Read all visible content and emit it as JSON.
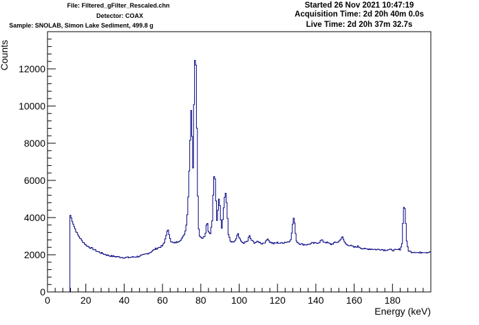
{
  "header": {
    "file": "File: Filtered_gFilter_Rescaled.chn",
    "detector": "Detector: COAX",
    "sample": "Sample: SNOLAB, Simon Lake Sediment, 499.8 g",
    "started": "Started 26 Nov 2021 10:47:19",
    "acquisition_time": "Acquisition Time: 2d 20h 40m 0.0s",
    "live_time": "Live Time: 2d 20h 37m 32.7s"
  },
  "colors": {
    "line": "#000080",
    "axis": "#000000",
    "background": "#ffffff"
  },
  "chart_data": {
    "type": "line",
    "style": "step histogram",
    "xlabel": "Energy (keV)",
    "ylabel": "Counts",
    "xlim": [
      0,
      200
    ],
    "ylim": [
      0,
      14000
    ],
    "x_ticks": [
      0,
      20,
      40,
      60,
      80,
      100,
      120,
      140,
      160,
      180
    ],
    "y_ticks": [
      0,
      2000,
      4000,
      6000,
      8000,
      10000,
      12000
    ],
    "grid": false,
    "legend": "none",
    "points": [
      [
        11.7,
        0
      ],
      [
        11.8,
        4050
      ],
      [
        12,
        4150
      ],
      [
        12.5,
        3950
      ],
      [
        13,
        3800
      ],
      [
        14,
        3500
      ],
      [
        15,
        3250
      ],
      [
        16,
        3050
      ],
      [
        17,
        2900
      ],
      [
        18,
        2750
      ],
      [
        19,
        2650
      ],
      [
        20,
        2520
      ],
      [
        22,
        2400
      ],
      [
        24,
        2300
      ],
      [
        26,
        2180
      ],
      [
        28,
        2100
      ],
      [
        30,
        2020
      ],
      [
        32,
        1960
      ],
      [
        34,
        1920
      ],
      [
        36,
        1900
      ],
      [
        38,
        1870
      ],
      [
        40,
        1850
      ],
      [
        42,
        1850
      ],
      [
        44,
        1870
      ],
      [
        46,
        1890
      ],
      [
        48,
        1920
      ],
      [
        50,
        1980
      ],
      [
        52,
        2060
      ],
      [
        53,
        2100
      ],
      [
        54,
        2150
      ],
      [
        56,
        2300
      ],
      [
        58,
        2380
      ],
      [
        60,
        2480
      ],
      [
        61,
        2650
      ],
      [
        62,
        3100
      ],
      [
        62.8,
        3350
      ],
      [
        63.6,
        3050
      ],
      [
        64.5,
        2700
      ],
      [
        66,
        2620
      ],
      [
        68,
        2700
      ],
      [
        70,
        2850
      ],
      [
        71,
        3000
      ],
      [
        72,
        3300
      ],
      [
        72.8,
        3900
      ],
      [
        73.5,
        5200
      ],
      [
        74.3,
        7600
      ],
      [
        74.9,
        9900
      ],
      [
        75.4,
        8800
      ],
      [
        75.8,
        5500
      ],
      [
        76.3,
        9300
      ],
      [
        76.8,
        12000
      ],
      [
        77.2,
        13300
      ],
      [
        77.7,
        11200
      ],
      [
        78.2,
        6400
      ],
      [
        78.8,
        3500
      ],
      [
        79.5,
        3000
      ],
      [
        80.5,
        2900
      ],
      [
        81.5,
        2950
      ],
      [
        82.3,
        3000
      ],
      [
        83.2,
        3850
      ],
      [
        84,
        3200
      ],
      [
        85,
        3150
      ],
      [
        86,
        3900
      ],
      [
        86.6,
        5600
      ],
      [
        87.2,
        6700
      ],
      [
        87.8,
        5300
      ],
      [
        88.4,
        3800
      ],
      [
        89,
        4500
      ],
      [
        89.6,
        5150
      ],
      [
        90.2,
        4300
      ],
      [
        90.8,
        3300
      ],
      [
        91.5,
        3900
      ],
      [
        92.3,
        5000
      ],
      [
        92.9,
        5400
      ],
      [
        93.6,
        4600
      ],
      [
        94.4,
        3100
      ],
      [
        95.5,
        2700
      ],
      [
        97,
        2650
      ],
      [
        98.5,
        2850
      ],
      [
        99.3,
        3150
      ],
      [
        100.2,
        2850
      ],
      [
        101.5,
        2650
      ],
      [
        103,
        2650
      ],
      [
        104.5,
        2750
      ],
      [
        105.3,
        3050
      ],
      [
        106.2,
        2800
      ],
      [
        108,
        2650
      ],
      [
        110,
        2700
      ],
      [
        112,
        2600
      ],
      [
        114,
        2700
      ],
      [
        114.9,
        2900
      ],
      [
        115.8,
        2700
      ],
      [
        118,
        2600
      ],
      [
        120,
        2650
      ],
      [
        122,
        2620
      ],
      [
        124,
        2680
      ],
      [
        126,
        2700
      ],
      [
        127.2,
        2900
      ],
      [
        128,
        3700
      ],
      [
        128.6,
        4050
      ],
      [
        129.2,
        3400
      ],
      [
        130,
        2700
      ],
      [
        132,
        2580
      ],
      [
        134,
        2550
      ],
      [
        136,
        2550
      ],
      [
        138,
        2620
      ],
      [
        140,
        2620
      ],
      [
        142,
        2680
      ],
      [
        143,
        2800
      ],
      [
        144,
        2700
      ],
      [
        146,
        2650
      ],
      [
        148,
        2560
      ],
      [
        150,
        2650
      ],
      [
        152,
        2700
      ],
      [
        153,
        2850
      ],
      [
        153.8,
        2980
      ],
      [
        154.6,
        2750
      ],
      [
        156,
        2550
      ],
      [
        158,
        2500
      ],
      [
        160,
        2400
      ],
      [
        162,
        2450
      ],
      [
        164,
        2350
      ],
      [
        166,
        2300
      ],
      [
        168,
        2320
      ],
      [
        170,
        2300
      ],
      [
        172,
        2280
      ],
      [
        174,
        2300
      ],
      [
        176,
        2250
      ],
      [
        178,
        2280
      ],
      [
        180,
        2250
      ],
      [
        182,
        2250
      ],
      [
        184,
        2300
      ],
      [
        185,
        2600
      ],
      [
        185.6,
        4100
      ],
      [
        186.2,
        4850
      ],
      [
        186.8,
        4000
      ],
      [
        187.5,
        2600
      ],
      [
        188.5,
        2200
      ],
      [
        190,
        2150
      ],
      [
        192,
        2150
      ],
      [
        194,
        2100
      ],
      [
        196,
        2150
      ],
      [
        198,
        2130
      ],
      [
        200,
        2180
      ]
    ]
  }
}
